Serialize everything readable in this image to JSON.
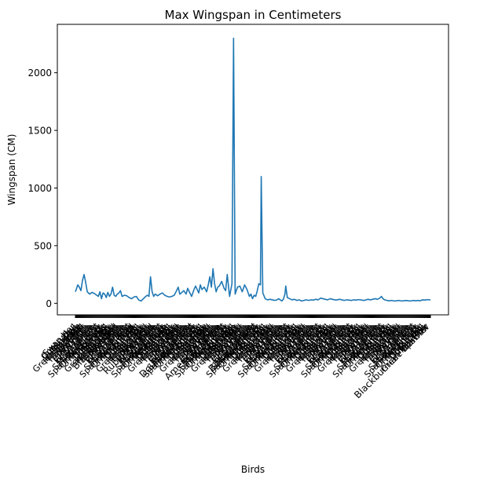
{
  "chart_data": {
    "type": "line",
    "title": "Max Wingspan in Centimeters",
    "xlabel": "Birds",
    "ylabel": "Wingspan (CM)",
    "ylim": [
      -100,
      2420
    ],
    "yticks": [
      0,
      500,
      1000,
      1500,
      2000
    ],
    "grid": false,
    "legend": "none",
    "line_color": "#1f77b4",
    "category_count": 450,
    "visible_xtick_labels": [
      "Brant",
      "Fulvous",
      "Black-bellied",
      "Red",
      "Ruby-throated",
      "American",
      "Least",
      "Double-crested",
      "Yellow",
      "American White",
      "Northern",
      "Black-capped",
      "Blackburnian Warbler"
    ],
    "series": [
      {
        "name": "",
        "points": [
          [
            0,
            100
          ],
          [
            3,
            160
          ],
          [
            5,
            140
          ],
          [
            7,
            110
          ],
          [
            9,
            200
          ],
          [
            11,
            250
          ],
          [
            13,
            180
          ],
          [
            15,
            100
          ],
          [
            18,
            80
          ],
          [
            21,
            95
          ],
          [
            24,
            85
          ],
          [
            27,
            70
          ],
          [
            29,
            60
          ],
          [
            31,
            100
          ],
          [
            33,
            40
          ],
          [
            35,
            90
          ],
          [
            37,
            80
          ],
          [
            39,
            50
          ],
          [
            41,
            95
          ],
          [
            43,
            60
          ],
          [
            45,
            80
          ],
          [
            47,
            140
          ],
          [
            49,
            70
          ],
          [
            51,
            60
          ],
          [
            53,
            80
          ],
          [
            55,
            90
          ],
          [
            57,
            110
          ],
          [
            59,
            60
          ],
          [
            62,
            70
          ],
          [
            65,
            65
          ],
          [
            68,
            50
          ],
          [
            71,
            40
          ],
          [
            74,
            55
          ],
          [
            77,
            60
          ],
          [
            80,
            30
          ],
          [
            83,
            20
          ],
          [
            86,
            40
          ],
          [
            89,
            60
          ],
          [
            91,
            70
          ],
          [
            93,
            60
          ],
          [
            95,
            230
          ],
          [
            97,
            100
          ],
          [
            99,
            60
          ],
          [
            101,
            80
          ],
          [
            104,
            65
          ],
          [
            107,
            80
          ],
          [
            110,
            90
          ],
          [
            113,
            70
          ],
          [
            116,
            60
          ],
          [
            119,
            55
          ],
          [
            122,
            60
          ],
          [
            125,
            70
          ],
          [
            128,
            110
          ],
          [
            130,
            140
          ],
          [
            132,
            80
          ],
          [
            134,
            90
          ],
          [
            137,
            110
          ],
          [
            140,
            80
          ],
          [
            142,
            130
          ],
          [
            144,
            100
          ],
          [
            147,
            60
          ],
          [
            150,
            120
          ],
          [
            152,
            150
          ],
          [
            154,
            120
          ],
          [
            156,
            90
          ],
          [
            158,
            160
          ],
          [
            160,
            120
          ],
          [
            163,
            140
          ],
          [
            166,
            100
          ],
          [
            168,
            160
          ],
          [
            170,
            230
          ],
          [
            172,
            140
          ],
          [
            174,
            300
          ],
          [
            176,
            170
          ],
          [
            178,
            100
          ],
          [
            180,
            140
          ],
          [
            182,
            150
          ],
          [
            185,
            190
          ],
          [
            188,
            130
          ],
          [
            190,
            110
          ],
          [
            192,
            250
          ],
          [
            195,
            60
          ],
          [
            198,
            170
          ],
          [
            200,
            2300
          ],
          [
            202,
            80
          ],
          [
            205,
            140
          ],
          [
            208,
            150
          ],
          [
            211,
            100
          ],
          [
            214,
            160
          ],
          [
            217,
            120
          ],
          [
            220,
            60
          ],
          [
            222,
            80
          ],
          [
            224,
            40
          ],
          [
            226,
            70
          ],
          [
            228,
            60
          ],
          [
            230,
            110
          ],
          [
            232,
            170
          ],
          [
            234,
            160
          ],
          [
            235,
            1100
          ],
          [
            237,
            90
          ],
          [
            240,
            40
          ],
          [
            243,
            30
          ],
          [
            246,
            35
          ],
          [
            249,
            30
          ],
          [
            252,
            25
          ],
          [
            255,
            30
          ],
          [
            257,
            40
          ],
          [
            259,
            30
          ],
          [
            261,
            20
          ],
          [
            263,
            35
          ],
          [
            265,
            80
          ],
          [
            266,
            150
          ],
          [
            268,
            50
          ],
          [
            271,
            40
          ],
          [
            274,
            30
          ],
          [
            277,
            35
          ],
          [
            280,
            25
          ],
          [
            283,
            30
          ],
          [
            286,
            20
          ],
          [
            289,
            25
          ],
          [
            292,
            30
          ],
          [
            295,
            25
          ],
          [
            298,
            30
          ],
          [
            301,
            28
          ],
          [
            304,
            35
          ],
          [
            307,
            30
          ],
          [
            310,
            45
          ],
          [
            313,
            40
          ],
          [
            316,
            35
          ],
          [
            319,
            30
          ],
          [
            322,
            40
          ],
          [
            325,
            35
          ],
          [
            328,
            30
          ],
          [
            331,
            30
          ],
          [
            334,
            35
          ],
          [
            337,
            30
          ],
          [
            340,
            25
          ],
          [
            343,
            30
          ],
          [
            346,
            28
          ],
          [
            349,
            25
          ],
          [
            352,
            30
          ],
          [
            355,
            28
          ],
          [
            358,
            32
          ],
          [
            361,
            30
          ],
          [
            364,
            25
          ],
          [
            367,
            28
          ],
          [
            370,
            35
          ],
          [
            373,
            30
          ],
          [
            376,
            35
          ],
          [
            379,
            40
          ],
          [
            382,
            35
          ],
          [
            385,
            45
          ],
          [
            387,
            60
          ],
          [
            389,
            40
          ],
          [
            391,
            30
          ],
          [
            394,
            25
          ],
          [
            397,
            22
          ],
          [
            400,
            25
          ],
          [
            403,
            20
          ],
          [
            406,
            22
          ],
          [
            409,
            25
          ],
          [
            412,
            20
          ],
          [
            415,
            22
          ],
          [
            418,
            25
          ],
          [
            421,
            22
          ],
          [
            424,
            20
          ],
          [
            427,
            25
          ],
          [
            430,
            22
          ],
          [
            433,
            25
          ],
          [
            436,
            22
          ],
          [
            439,
            30
          ],
          [
            442,
            28
          ],
          [
            445,
            32
          ],
          [
            449,
            30
          ]
        ]
      }
    ]
  }
}
